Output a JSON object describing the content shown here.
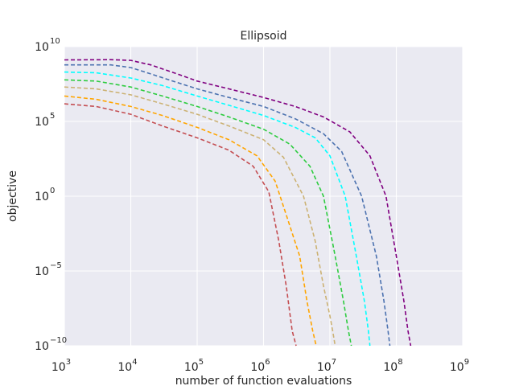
{
  "chart_data": {
    "type": "line",
    "title": "Ellipsoid",
    "xlabel": "number of function evaluations",
    "ylabel": "objective",
    "xscale": "log",
    "yscale": "log",
    "xlim": [
      1000,
      1000000000
    ],
    "ylim": [
      1e-10,
      10000000000.0
    ],
    "grid": true,
    "background": "#eaeaf2",
    "gridcolor": "#ffffff",
    "x_ticks": [
      {
        "base": "10",
        "exp": "3",
        "value": 1000
      },
      {
        "base": "10",
        "exp": "4",
        "value": 10000
      },
      {
        "base": "10",
        "exp": "5",
        "value": 100000
      },
      {
        "base": "10",
        "exp": "6",
        "value": 1000000
      },
      {
        "base": "10",
        "exp": "7",
        "value": 10000000
      },
      {
        "base": "10",
        "exp": "8",
        "value": 100000000
      },
      {
        "base": "10",
        "exp": "9",
        "value": 1000000000
      }
    ],
    "y_ticks": [
      {
        "base": "10",
        "exp": "10",
        "value": 10000000000.0
      },
      {
        "base": "10",
        "exp": "5",
        "value": 100000.0
      },
      {
        "base": "10",
        "exp": "0",
        "value": 1
      },
      {
        "base": "10",
        "exp": "−5",
        "value": 1e-05
      },
      {
        "base": "10",
        "exp": "−10",
        "value": 1e-10
      }
    ],
    "series": [
      {
        "color": "#800080",
        "x": [
          1000,
          5000,
          10000,
          20000,
          50000,
          100000,
          300000,
          1000000,
          3000000,
          8000000,
          20000000,
          40000000,
          70000000,
          100000000,
          130000000,
          150000000,
          165000000
        ],
        "y": [
          1300000000.0,
          1350000000.0,
          1200000000.0,
          600000000.0,
          150000000.0,
          50000000.0,
          15000000.0,
          4000000.0,
          1000000.0,
          200000.0,
          20000.0,
          500.0,
          1,
          0.0001,
          1e-07,
          1e-09,
          1e-10
        ]
      },
      {
        "color": "#4c72b0",
        "x": [
          1000,
          5000,
          10000,
          20000,
          50000,
          100000,
          300000,
          1000000,
          3000000,
          8000000,
          15000000,
          30000000,
          50000000,
          65000000,
          75000000,
          80000000
        ],
        "y": [
          600000000.0,
          600000000.0,
          400000000.0,
          150000000.0,
          40000000.0,
          15000000.0,
          4000000.0,
          1000000.0,
          150000.0,
          15000.0,
          1000.0,
          1,
          0.0001,
          1e-07,
          1e-09,
          1e-10
        ]
      },
      {
        "color": "#00ffff",
        "x": [
          1000,
          3000,
          10000,
          30000,
          100000,
          300000,
          1000000,
          3000000,
          6000000,
          10000000,
          17000000,
          25000000,
          33000000,
          38000000,
          40000000
        ],
        "y": [
          200000000.0,
          180000000.0,
          80000000.0,
          25000000.0,
          5000000.0,
          1200000.0,
          250000.0,
          40000.0,
          8000.0,
          500.0,
          1,
          0.0001,
          1e-07,
          1e-09,
          1e-10
        ]
      },
      {
        "color": "#2ecc40",
        "x": [
          1000,
          3000,
          10000,
          30000,
          100000,
          300000,
          1000000,
          2500000,
          5000000,
          8000000,
          12000000,
          16000000,
          19000000,
          21000000
        ],
        "y": [
          60000000.0,
          50000000.0,
          20000000.0,
          5000000.0,
          1000000.0,
          200000.0,
          30000.0,
          3000.0,
          100.0,
          1,
          0.0001,
          1e-07,
          1e-09,
          1e-10
        ]
      },
      {
        "color": "#ccb274",
        "x": [
          1000,
          3000,
          10000,
          30000,
          100000,
          300000,
          1000000,
          2000000,
          4000000,
          6000000,
          8000000,
          10000000,
          11000000,
          12000000
        ],
        "y": [
          20000000.0,
          15000000.0,
          6000000.0,
          1500000.0,
          300000.0,
          50000.0,
          6000.0,
          400.0,
          1,
          0.001,
          1e-06,
          1e-08,
          1e-09,
          1e-10
        ]
      },
      {
        "color": "#ffa500",
        "x": [
          1000,
          3000,
          10000,
          30000,
          100000,
          300000,
          800000,
          1500000,
          2500000,
          3500000,
          4500000,
          5500000,
          6200000
        ],
        "y": [
          5000000.0,
          3000000.0,
          1000000.0,
          250000.0,
          40000.0,
          6000.0,
          500.0,
          10,
          0.01,
          0.0001,
          1e-07,
          1e-09,
          1e-10
        ]
      },
      {
        "color": "#c44e52",
        "x": [
          1000,
          3000,
          10000,
          30000,
          100000,
          300000,
          700000,
          1200000,
          1700000,
          2200000,
          2700000,
          3100000
        ],
        "y": [
          1500000.0,
          1000000.0,
          300000.0,
          50000.0,
          8000.0,
          1200.0,
          100.0,
          2,
          0.001,
          1e-06,
          1e-09,
          1e-10
        ]
      }
    ]
  }
}
